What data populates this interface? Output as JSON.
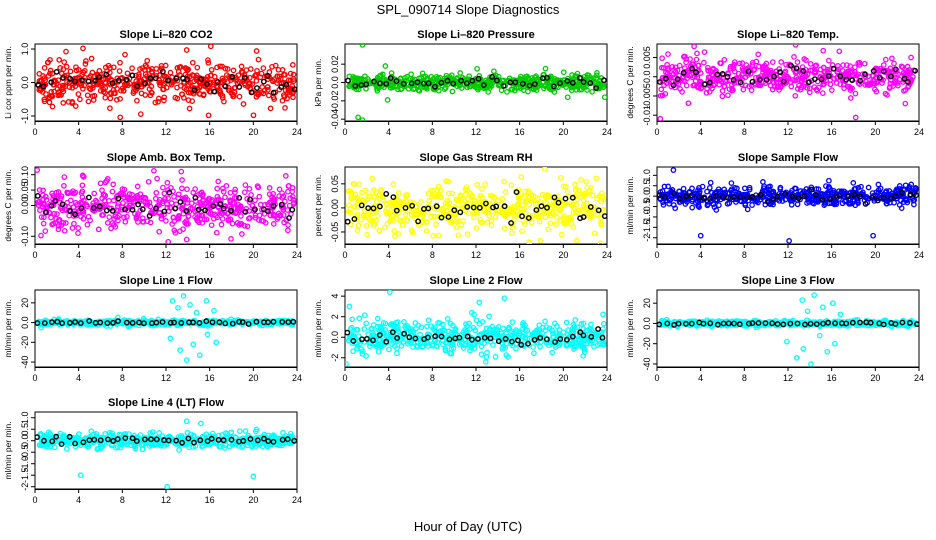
{
  "figure": {
    "title": "SPL_090714  Slope Diagnostics",
    "xlabel": "Hour of Day (UTC)"
  },
  "chart_data": [
    {
      "type": "scatter",
      "title": "Slope Li–820 CO2",
      "ylabel": "Li cor ppm per min.",
      "color": "#ff0000",
      "xlim": [
        0,
        24
      ],
      "xticks": [
        0,
        4,
        8,
        12,
        16,
        20,
        24
      ],
      "ylim": [
        -1.15,
        1.15
      ],
      "yticks": [
        -1.0,
        0.0,
        1.0
      ],
      "spread": 0.28,
      "outliers_high": [
        [
          4.4,
          1.02
        ],
        [
          13.9,
          0.97
        ],
        [
          16.1,
          1.08
        ],
        [
          20.3,
          0.94
        ]
      ],
      "outliers_low": [
        [
          1.6,
          -0.72
        ],
        [
          7.8,
          -1.04
        ],
        [
          15.9,
          -0.98
        ],
        [
          22.9,
          -0.76
        ]
      ]
    },
    {
      "type": "scatter",
      "title": "Slope Li–820 Pressure",
      "ylabel": "kPa per min.",
      "color": "#00cc00",
      "xlim": [
        0,
        24
      ],
      "xticks": [
        0,
        4,
        8,
        12,
        16,
        20,
        24
      ],
      "ylim": [
        -0.042,
        0.042
      ],
      "yticks": [
        -0.04,
        -0.02,
        0.0,
        0.02
      ],
      "spread": 0.0045,
      "outliers_high": [
        [
          1.6,
          0.041
        ],
        [
          3.7,
          0.018
        ],
        [
          12.1,
          0.015
        ]
      ],
      "outliers_low": [
        [
          1.2,
          -0.038
        ],
        [
          1.6,
          -0.041
        ],
        [
          3.9,
          -0.019
        ],
        [
          20.4,
          -0.016
        ],
        [
          23.8,
          -0.016
        ]
      ]
    },
    {
      "type": "scatter",
      "title": "Slope Li–820 Temp.",
      "ylabel": "degrees C per min.",
      "color": "#ff00ff",
      "xlim": [
        0,
        24
      ],
      "xticks": [
        0,
        4,
        8,
        12,
        16,
        20,
        24
      ],
      "ylim": [
        -0.0115,
        0.0085
      ],
      "yticks": [
        -0.01,
        -0.005,
        0.0,
        0.005
      ],
      "spread": 0.0022,
      "outliers_high": [
        [
          3.4,
          0.0079
        ],
        [
          12.7,
          0.0083
        ],
        [
          16.7,
          0.0066
        ]
      ],
      "outliers_low": [
        [
          0.3,
          -0.0109
        ],
        [
          18.2,
          -0.0106
        ]
      ]
    },
    {
      "type": "scatter",
      "title": "Slope Amb. Box Temp.",
      "ylabel": "degrees C per min.",
      "color": "#ff00ff",
      "xlim": [
        0,
        24
      ],
      "xticks": [
        0,
        4,
        8,
        12,
        16,
        20,
        24
      ],
      "ylim": [
        -0.125,
        0.125
      ],
      "yticks": [
        -0.1,
        0.0,
        0.05,
        0.1
      ],
      "ytick_labels": [
        "-0.10",
        "0.00",
        "0.05",
        "0.10"
      ],
      "spread": 0.038,
      "outliers_high": [
        [
          0.2,
          0.115
        ],
        [
          13.4,
          0.11
        ]
      ],
      "outliers_low": [
        [
          12.2,
          -0.118
        ]
      ]
    },
    {
      "type": "scatter",
      "title": "Slope Gas Stream RH",
      "ylabel": "percent per min.",
      "color": "#ffff00",
      "xlim": [
        0,
        24
      ],
      "xticks": [
        0,
        4,
        8,
        12,
        16,
        20,
        24
      ],
      "ylim": [
        -0.075,
        0.085
      ],
      "yticks": [
        -0.05,
        0.0,
        0.05
      ],
      "ytick_labels": [
        "-0.05",
        "0.00",
        "0.05"
      ],
      "spread": 0.026,
      "outliers_high": [
        [
          18.3,
          0.081
        ]
      ],
      "outliers_low": [
        [
          17.9,
          -0.068
        ]
      ]
    },
    {
      "type": "scatter",
      "title": "Slope Sample Flow",
      "ylabel": "ml/min per min.",
      "color": "#0000ff",
      "xlim": [
        0,
        24
      ],
      "xticks": [
        0,
        4,
        8,
        12,
        16,
        20,
        24
      ],
      "ylim": [
        -2.3,
        1.4
      ],
      "yticks": [
        -2.0,
        -1.5,
        -1.0,
        -0.5,
        0.0,
        0.5,
        1.0
      ],
      "spread": 0.25,
      "outliers_high": [
        [
          1.5,
          1.25
        ]
      ],
      "outliers_low": [
        [
          4.0,
          -1.9
        ],
        [
          12.1,
          -2.15
        ],
        [
          19.8,
          -1.9
        ]
      ]
    },
    {
      "type": "scatter",
      "title": "Slope Line 1 Flow",
      "ylabel": "ml/min per min.",
      "color": "#00ffff",
      "xlim": [
        0,
        24
      ],
      "xticks": [
        0,
        4,
        8,
        12,
        16,
        20,
        24
      ],
      "ylim": [
        -45,
        33
      ],
      "yticks": [
        -40,
        -20,
        0,
        20
      ],
      "spread": 1.3,
      "outliers_high": [
        [
          12.6,
          22
        ],
        [
          13.1,
          15
        ],
        [
          13.6,
          27
        ],
        [
          14.2,
          18
        ],
        [
          14.8,
          10
        ],
        [
          15.7,
          22
        ],
        [
          16.4,
          12
        ]
      ],
      "outliers_low": [
        [
          12.4,
          -16
        ],
        [
          13.3,
          -28
        ],
        [
          13.9,
          -38
        ],
        [
          14.5,
          -22
        ],
        [
          15.1,
          -33
        ],
        [
          15.8,
          -12
        ],
        [
          16.6,
          -20
        ]
      ]
    },
    {
      "type": "scatter",
      "title": "Slope Line 2 Flow",
      "ylabel": "ml/min per min.",
      "color": "#00ffff",
      "xlim": [
        0,
        24
      ],
      "xticks": [
        0,
        4,
        8,
        12,
        16,
        20,
        24
      ],
      "ylim": [
        -2.9,
        4.6
      ],
      "yticks": [
        -2,
        0,
        2,
        4
      ],
      "spread": 0.75,
      "outliers_high": [
        [
          0.4,
          3.0
        ],
        [
          4.1,
          4.4
        ],
        [
          12.3,
          3.4
        ],
        [
          14.6,
          3.8
        ]
      ],
      "outliers_low": [
        [
          0.1,
          -2.6
        ],
        [
          12.9,
          -2.4
        ],
        [
          13.8,
          -1.9
        ]
      ]
    },
    {
      "type": "scatter",
      "title": "Slope Line 3 Flow",
      "ylabel": "ml/min per min.",
      "color": "#00ffff",
      "xlim": [
        0,
        24
      ],
      "xticks": [
        0,
        4,
        8,
        12,
        16,
        20,
        24
      ],
      "ylim": [
        -43,
        33
      ],
      "yticks": [
        -40,
        -20,
        0,
        20
      ],
      "spread": 1.3,
      "outliers_high": [
        [
          13.3,
          23
        ],
        [
          13.8,
          12
        ],
        [
          14.4,
          28
        ],
        [
          15.2,
          16
        ],
        [
          16.1,
          20
        ],
        [
          16.8,
          9
        ]
      ],
      "outliers_low": [
        [
          11.9,
          -18
        ],
        [
          12.8,
          -34
        ],
        [
          13.4,
          -25
        ],
        [
          14.1,
          -40
        ],
        [
          14.9,
          -12
        ],
        [
          15.6,
          -28
        ],
        [
          16.3,
          -20
        ]
      ]
    },
    {
      "type": "scatter",
      "title": "Slope Line 4 (LT) Flow",
      "ylabel": "ml/min per min.",
      "color": "#00ffff",
      "xlim": [
        0,
        24
      ],
      "xticks": [
        0,
        4,
        8,
        12,
        16,
        20,
        24
      ],
      "ylim": [
        -2.1,
        1.25
      ],
      "yticks": [
        -2.0,
        -1.5,
        -1.0,
        -0.5,
        0.0,
        0.5,
        1.0
      ],
      "spread": 0.15,
      "outliers_high": [
        [
          13.9,
          0.85
        ],
        [
          15.2,
          0.75
        ]
      ],
      "outliers_low": [
        [
          4.2,
          -1.5
        ],
        [
          12.1,
          -2.0
        ],
        [
          13.2,
          -0.4
        ],
        [
          20.0,
          -1.55
        ]
      ]
    }
  ]
}
